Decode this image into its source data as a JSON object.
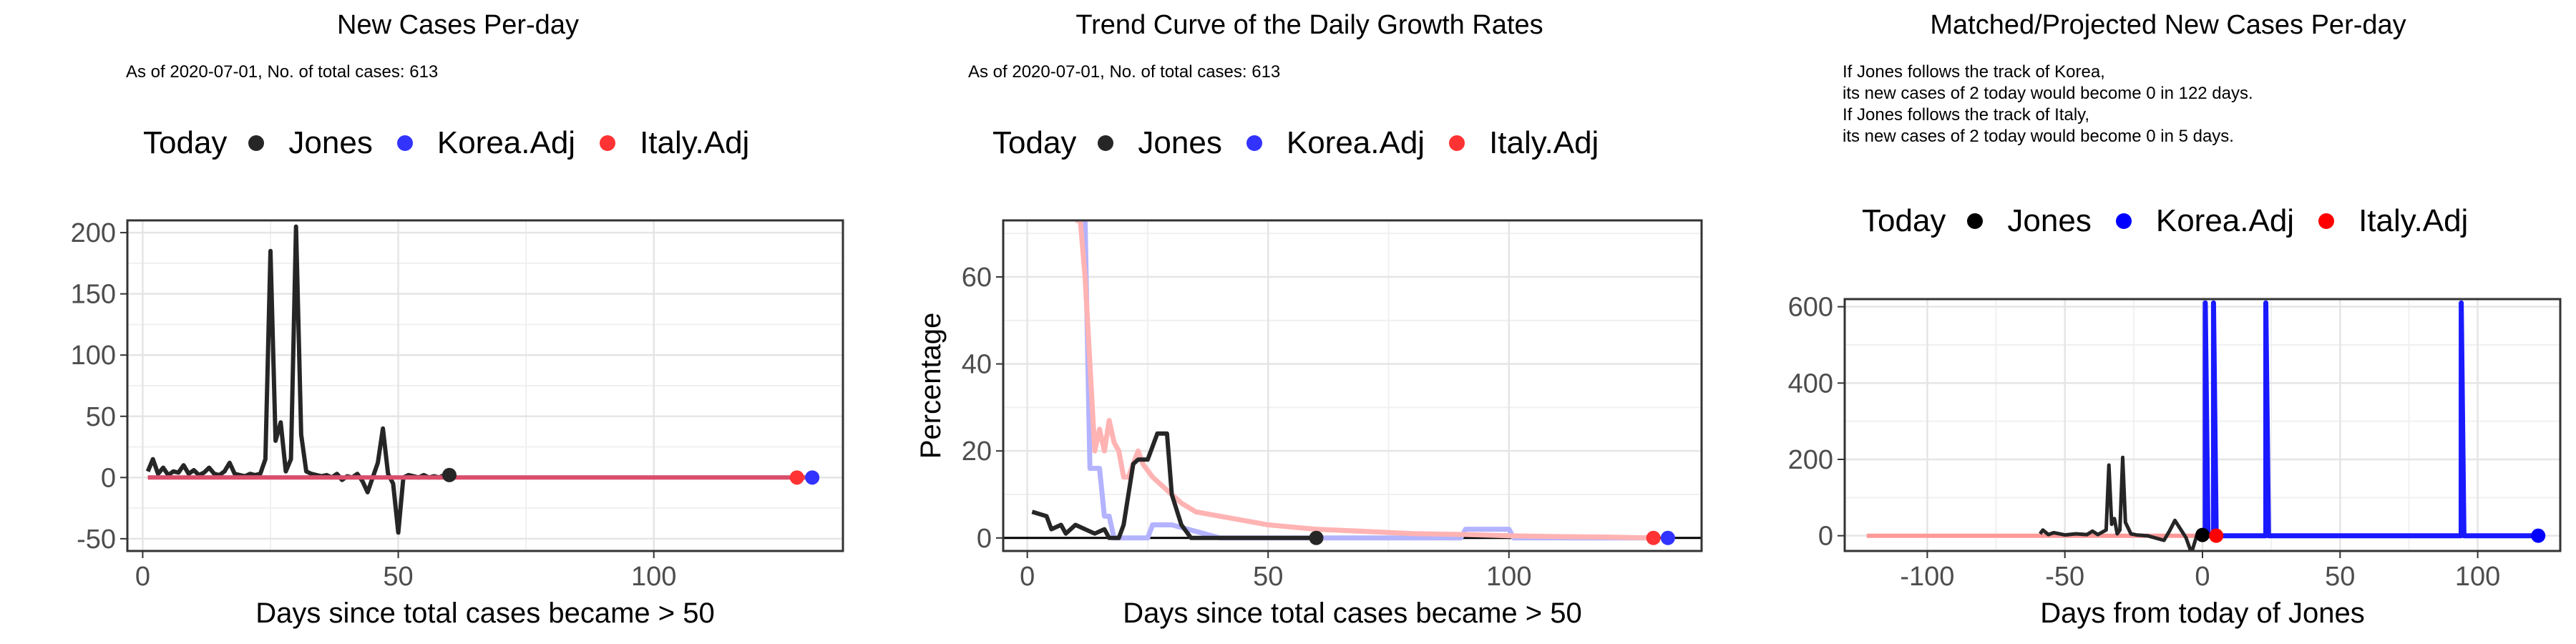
{
  "chart_data": [
    {
      "type": "line",
      "title": "New Cases Per-day",
      "subtitle": "As of 2020-07-01, No. of total cases: 613",
      "legend": {
        "title": "Today",
        "placement": "top",
        "entries": [
          "Jones",
          "Korea.Adj",
          "Italy.Adj"
        ]
      },
      "xlabel": "Days since total cases became > 50",
      "ylabel": "",
      "xlim": [
        -3,
        137
      ],
      "ylim": [
        -60,
        210
      ],
      "xticks": [
        0,
        50,
        100
      ],
      "yticks": [
        -50,
        0,
        50,
        100,
        150,
        200
      ],
      "grid": true,
      "colors": {
        "Jones": "#262626",
        "Korea.Adj": "#3333ff",
        "Italy.Adj": "#ff3333",
        "overlay": "#b070b0"
      },
      "series": [
        {
          "name": "Jones",
          "x": [
            1,
            2,
            3,
            4,
            5,
            6,
            7,
            8,
            9,
            10,
            11,
            12,
            13,
            14,
            15,
            16,
            17,
            18,
            19,
            20,
            21,
            22,
            23,
            24,
            25,
            26,
            27,
            28,
            29,
            30,
            31,
            32,
            33,
            34,
            35,
            36,
            37,
            38,
            39,
            40,
            41,
            42,
            43,
            44,
            45,
            46,
            47,
            48,
            49,
            50,
            51,
            52,
            53,
            54,
            55,
            56,
            57,
            58,
            59,
            60
          ],
          "values": [
            5,
            15,
            3,
            8,
            2,
            5,
            4,
            10,
            3,
            6,
            2,
            4,
            8,
            3,
            2,
            5,
            12,
            3,
            2,
            1,
            3,
            2,
            3,
            15,
            185,
            30,
            45,
            5,
            15,
            205,
            35,
            5,
            3,
            2,
            1,
            2,
            0,
            3,
            -2,
            1,
            0,
            3,
            -3,
            -12,
            0,
            12,
            40,
            3,
            -5,
            -45,
            0,
            2,
            1,
            0,
            2,
            0,
            1,
            0,
            2,
            2
          ]
        },
        {
          "name": "Korea.Adj",
          "x": [
            1,
            130
          ],
          "values": [
            0,
            0
          ]
        },
        {
          "name": "Italy.Adj",
          "x": [
            1,
            130
          ],
          "values": [
            0,
            0
          ]
        }
      ],
      "today": [
        {
          "name": "Jones",
          "x": 60,
          "y": 2
        },
        {
          "name": "Italy.Adj",
          "x": 128,
          "y": 0
        },
        {
          "name": "Korea.Adj",
          "x": 131,
          "y": 0
        }
      ]
    },
    {
      "type": "line",
      "title": "Trend Curve of the Daily Growth Rates",
      "subtitle": "As of 2020-07-01, No. of total cases: 613",
      "legend": {
        "title": "Today",
        "placement": "top",
        "entries": [
          "Jones",
          "Korea.Adj",
          "Italy.Adj"
        ]
      },
      "xlabel": "Days since total cases became > 50",
      "ylabel": "Percentage",
      "xlim": [
        -5,
        140
      ],
      "ylim": [
        -3,
        73
      ],
      "xticks": [
        0,
        50,
        100
      ],
      "yticks": [
        0,
        20,
        40,
        60
      ],
      "grid": true,
      "hline": 0,
      "colors": {
        "Jones": "#262626",
        "Korea.Adj": "#b3b3ff",
        "Italy.Adj": "#ffb3b3"
      },
      "series": [
        {
          "name": "Korea.Adj",
          "x": [
            10,
            12,
            13,
            15,
            16,
            17,
            18,
            19,
            20,
            21,
            25,
            26,
            30,
            40,
            90,
            91,
            100,
            101,
            110,
            130
          ],
          "values": [
            73,
            73,
            16,
            16,
            5,
            5,
            0,
            0,
            0,
            0,
            0,
            3,
            3,
            0,
            0,
            2,
            2,
            0,
            0,
            0
          ]
        },
        {
          "name": "Italy.Adj",
          "x": [
            10,
            11,
            12,
            13,
            14,
            15,
            16,
            17,
            18,
            19,
            20,
            21,
            22,
            23,
            24,
            26,
            28,
            30,
            32,
            35,
            40,
            45,
            50,
            55,
            60,
            70,
            80,
            90,
            100,
            110,
            120,
            130
          ],
          "values": [
            73,
            73,
            60,
            40,
            20,
            25,
            20,
            27,
            22,
            20,
            14,
            14,
            17,
            20,
            17,
            14,
            12,
            10,
            8,
            6,
            5,
            4,
            3,
            2.5,
            2,
            1.5,
            1,
            0.8,
            0.5,
            0.3,
            0.2,
            0
          ]
        },
        {
          "name": "Jones",
          "x": [
            1,
            4,
            5,
            7,
            8,
            10,
            12,
            14,
            16,
            17,
            19,
            20,
            22,
            23,
            25,
            27,
            29,
            30,
            32,
            34,
            35,
            40,
            45,
            55,
            60
          ],
          "values": [
            6,
            5,
            2,
            3,
            1,
            3,
            2,
            1,
            2,
            0,
            0,
            3,
            17,
            18,
            18,
            24,
            24,
            10,
            3,
            0,
            0,
            0,
            0,
            0,
            0
          ]
        }
      ],
      "today": [
        {
          "name": "Jones",
          "x": 60,
          "y": 0
        },
        {
          "name": "Italy.Adj",
          "x": 130,
          "y": 0
        },
        {
          "name": "Korea.Adj",
          "x": 133,
          "y": 0
        }
      ]
    },
    {
      "type": "line",
      "title": "Matched/Projected New Cases Per-day",
      "annotation": [
        "If Jones follows the track of Korea,",
        "its new cases of 2 today would become 0 in 122 days.",
        "If Jones follows the track of Italy,",
        "its new cases of 2 today would become 0 in 5 days."
      ],
      "legend": {
        "title": "Today",
        "placement": "top",
        "entries": [
          "Jones",
          "Korea.Adj",
          "Italy.Adj"
        ]
      },
      "xlabel": "Days from today of Jones",
      "ylabel": "",
      "xlim": [
        -130,
        130
      ],
      "ylim": [
        -40,
        620
      ],
      "xticks": [
        -100,
        -50,
        0,
        50,
        100
      ],
      "yticks": [
        0,
        200,
        400,
        600
      ],
      "grid": true,
      "colors": {
        "Jones": "#262626",
        "Korea.Adj": "#1a1aff",
        "Italy.Adj": "#ff9999",
        "today_Jones": "#000000",
        "today_Korea": "#0000ff",
        "today_Italy": "#ff0000"
      },
      "series": [
        {
          "name": "Italy.Adj",
          "x": [
            -122,
            -100,
            -80,
            -60,
            -40,
            -20,
            0,
            5
          ],
          "values": [
            0,
            0,
            0,
            0,
            0,
            0,
            0,
            0
          ]
        },
        {
          "name": "Jones",
          "x": [
            -59,
            -58,
            -56,
            -54,
            -50,
            -46,
            -42,
            -40,
            -38,
            -35,
            -34,
            -33,
            -32,
            -31,
            -30,
            -29,
            -28,
            -26,
            -24,
            -20,
            -14,
            -12,
            -10,
            -6,
            -4,
            -2,
            0
          ],
          "values": [
            5,
            15,
            3,
            8,
            2,
            5,
            3,
            12,
            3,
            15,
            185,
            30,
            45,
            5,
            15,
            205,
            35,
            5,
            2,
            0,
            -12,
            12,
            40,
            -5,
            -45,
            2,
            2
          ]
        },
        {
          "name": "Korea.Adj",
          "x": [
            0,
            1,
            1.01,
            2,
            3,
            4,
            4.01,
            5,
            6,
            22,
            23,
            23.01,
            24,
            25,
            93,
            94,
            94.01,
            95,
            96,
            122
          ],
          "values": [
            0,
            0,
            610,
            0,
            0,
            0,
            610,
            0,
            0,
            0,
            0,
            610,
            0,
            0,
            0,
            0,
            610,
            0,
            0,
            0
          ]
        }
      ],
      "today": [
        {
          "name": "Jones",
          "x": 0,
          "y": 2
        },
        {
          "name": "Italy.Adj",
          "x": 5,
          "y": 0
        },
        {
          "name": "Korea.Adj",
          "x": 122,
          "y": 0
        }
      ]
    }
  ]
}
